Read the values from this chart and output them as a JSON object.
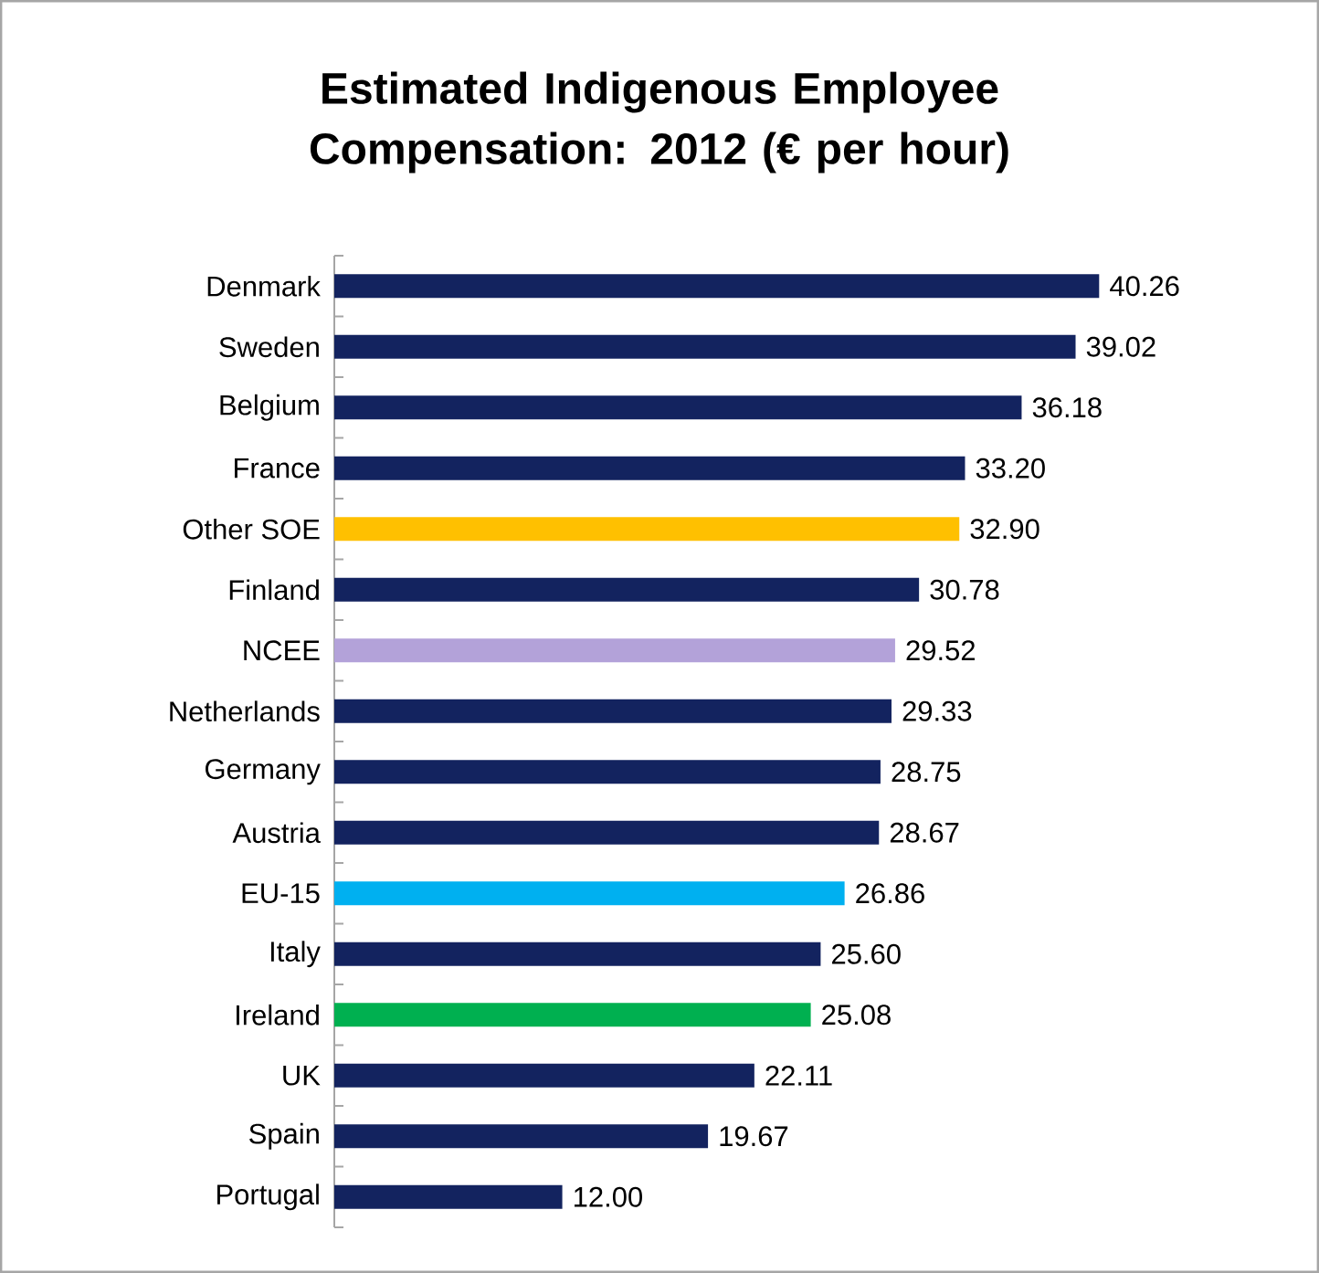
{
  "chart_data": {
    "type": "bar",
    "orientation": "horizontal",
    "title": "Estimated Indigenous Employee Compensation:  2012 (€ per hour)",
    "categories": [
      "Denmark",
      "Sweden",
      "Belgium",
      "France",
      "Other SOE",
      "Finland",
      "NCEE",
      "Netherlands",
      "Germany",
      "Austria",
      "EU-15",
      "Italy",
      "Ireland",
      "UK",
      "Spain",
      "Portugal"
    ],
    "values": [
      40.26,
      39.02,
      36.18,
      33.2,
      32.9,
      30.78,
      29.52,
      29.33,
      28.75,
      28.67,
      26.86,
      25.6,
      25.08,
      22.11,
      19.67,
      12.0
    ],
    "colors": [
      "#13235f",
      "#13235f",
      "#13235f",
      "#13235f",
      "#ffc000",
      "#13235f",
      "#b3a2d9",
      "#13235f",
      "#13235f",
      "#13235f",
      "#00b0f0",
      "#13235f",
      "#00b050",
      "#13235f",
      "#13235f",
      "#13235f"
    ],
    "value_labels": [
      "40.26",
      "39.02",
      "36.18",
      "33.20",
      "32.90",
      "30.78",
      "29.52",
      "29.33",
      "28.75",
      "28.67",
      "26.86",
      "25.60",
      "25.08",
      "22.11",
      "19.67",
      "12.00"
    ]
  }
}
